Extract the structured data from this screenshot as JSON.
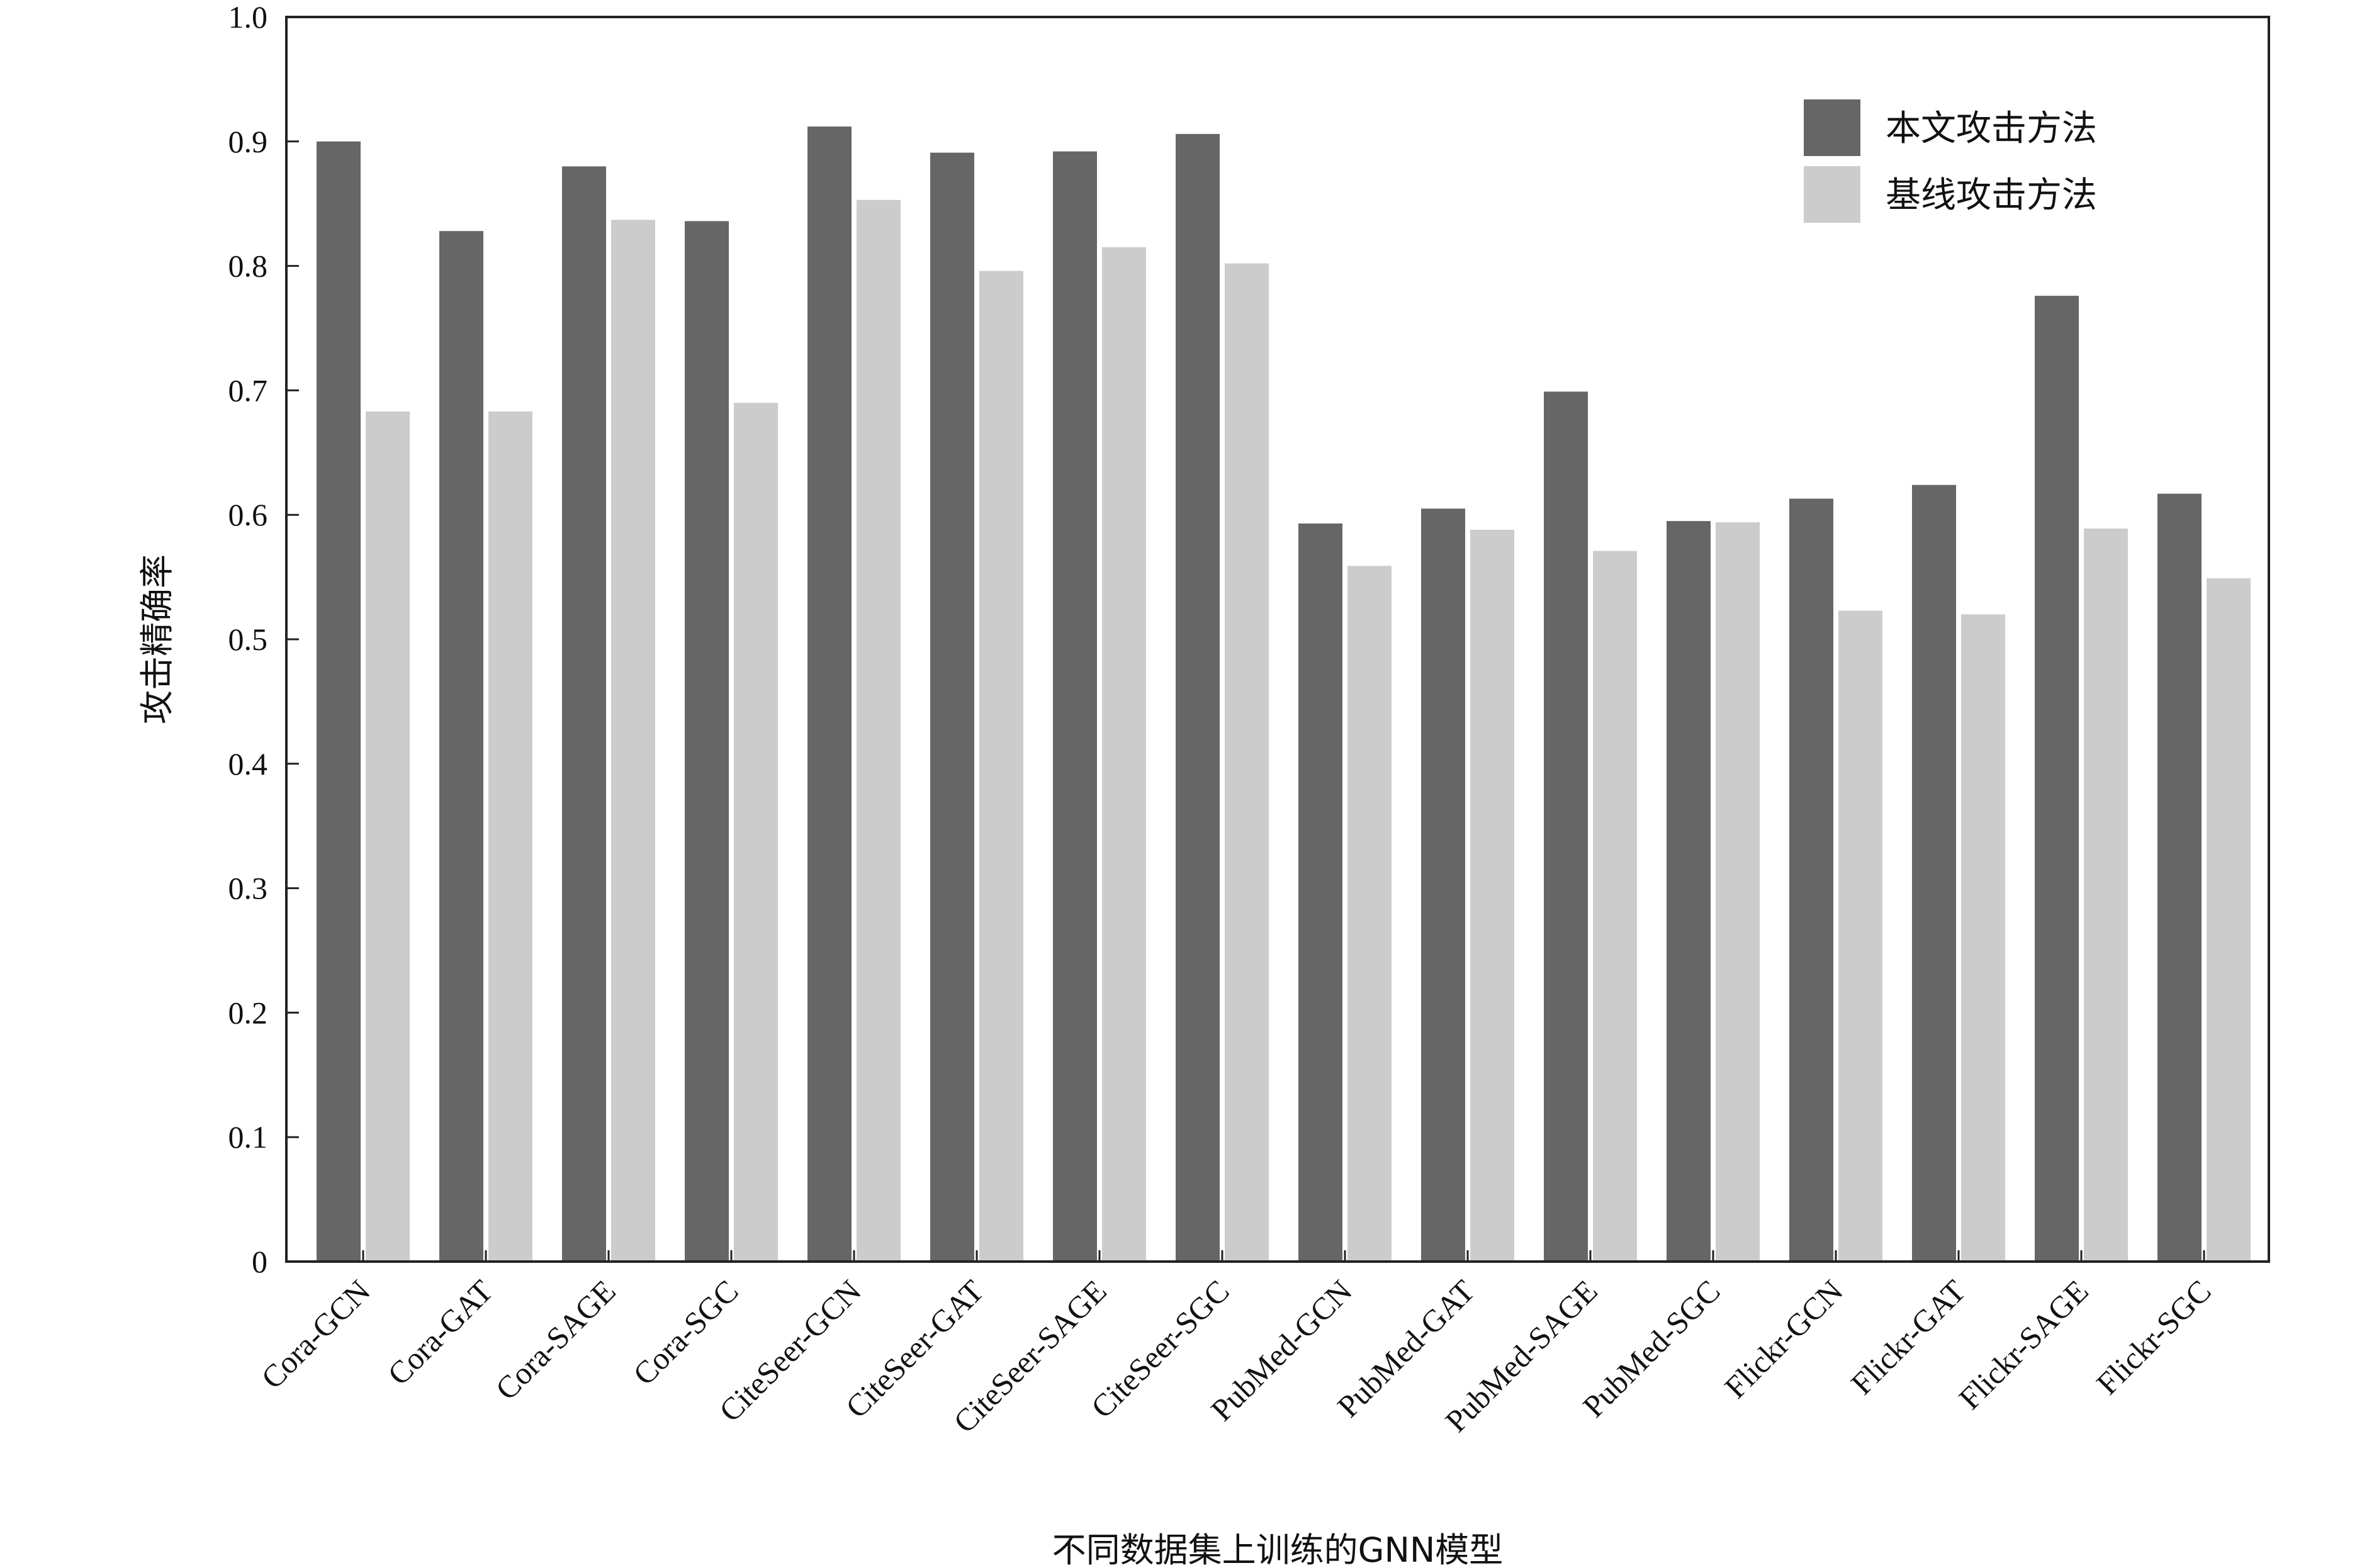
{
  "chart_data": {
    "type": "bar",
    "xlabel": "不同数据集上训练的GNN模型",
    "ylabel": "攻击精确率",
    "ylim": [
      0,
      1.0
    ],
    "yticks": [
      "0",
      "0.1",
      "0.2",
      "0.3",
      "0.4",
      "0.5",
      "0.6",
      "0.7",
      "0.8",
      "0.9",
      "1.0"
    ],
    "grid": false,
    "legend_position": "top-right",
    "categories": [
      "Cora-GCN",
      "Cora-GAT",
      "Cora-SAGE",
      "Cora-SGC",
      "CiteSeer-GCN",
      "CiteSeer-GAT",
      "CiteSeer-SAGE",
      "CiteSeer-SGC",
      "PubMed-GCN",
      "PubMed-GAT",
      "PubMed-SAGE",
      "PubMed-SGC",
      "Flickr-GCN",
      "Flickr-GAT",
      "Flickr-SAGE",
      "Flickr-SGC"
    ],
    "series": [
      {
        "name": "本文攻击方法",
        "color": "#666666",
        "values": [
          0.9,
          0.828,
          0.88,
          0.836,
          0.912,
          0.891,
          0.892,
          0.906,
          0.593,
          0.605,
          0.699,
          0.595,
          0.613,
          0.624,
          0.776,
          0.617
        ]
      },
      {
        "name": "基线攻击方法",
        "color": "#cccccc",
        "values": [
          0.683,
          0.683,
          0.837,
          0.69,
          0.853,
          0.796,
          0.815,
          0.802,
          0.559,
          0.588,
          0.571,
          0.594,
          0.523,
          0.52,
          0.589,
          0.549
        ]
      }
    ]
  }
}
